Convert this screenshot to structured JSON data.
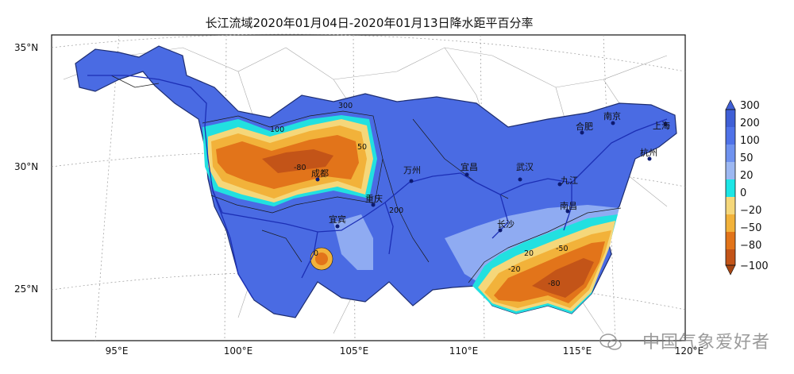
{
  "map": {
    "title": "长江流域2020年01月04日-2020年01月13日降水距平百分率",
    "lat_labels": [
      "35°N",
      "30°N",
      "25°N"
    ],
    "lon_labels": [
      "95°E",
      "100°E",
      "105°E",
      "110°E",
      "115°E",
      "120°E"
    ],
    "cities": [
      {
        "name": "成都"
      },
      {
        "name": "重庆"
      },
      {
        "name": "万州"
      },
      {
        "name": "宜昌"
      },
      {
        "name": "武汉"
      },
      {
        "name": "合肥"
      },
      {
        "name": "南京"
      },
      {
        "name": "上海"
      },
      {
        "name": "杭州"
      },
      {
        "name": "九江"
      },
      {
        "name": "南昌"
      },
      {
        "name": "长沙"
      },
      {
        "name": "宜宾"
      }
    ],
    "contour_labels": [
      "100",
      "200",
      "300",
      "50",
      "20",
      "-20",
      "-50",
      "-80",
      "0"
    ]
  },
  "legend": {
    "ticks": [
      "300",
      "200",
      "100",
      "50",
      "20",
      "0",
      "−20",
      "−50",
      "−80",
      "−100"
    ],
    "colors": [
      "#3f5fd6",
      "#4f72e8",
      "#6f92ef",
      "#9db8f2",
      "#1ce6e6",
      "#f5d77a",
      "#f2b23a",
      "#e2741a",
      "#c35418"
    ]
  },
  "watermark": {
    "text": "中国气象爱好者",
    "icon": "wechat-icon"
  }
}
